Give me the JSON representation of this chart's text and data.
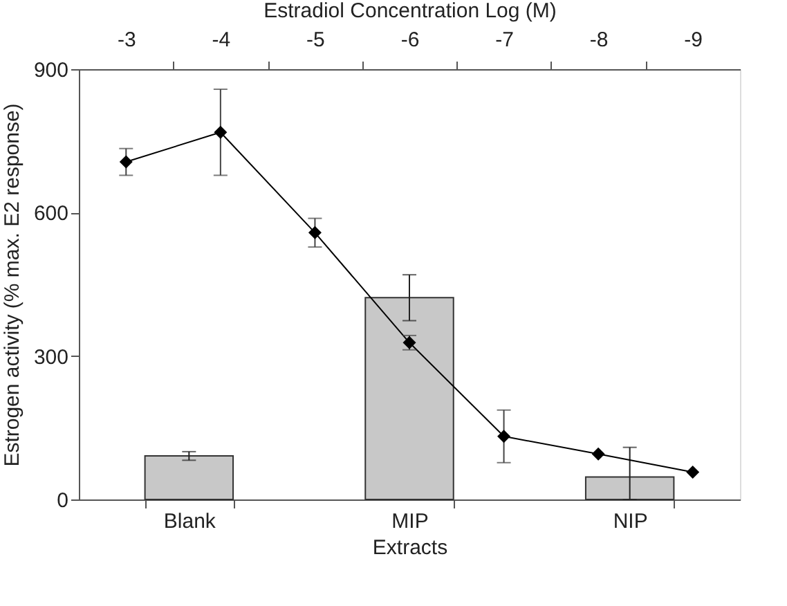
{
  "chart_data": {
    "type": "bar",
    "categories": [
      "Blank",
      "MIP",
      "NIP"
    ],
    "values": [
      91,
      422,
      47
    ],
    "errors": [
      9,
      48,
      [
        0,
        109
      ]
    ],
    "color": "#c8c8c8",
    "xlabel": "Extracts",
    "ylabel": "Estrogen activity (% max. E2 response)",
    "ylim": [
      0,
      900
    ],
    "yticks": [
      0,
      300,
      600,
      900
    ],
    "x2label": "Estradiol Concentration Log (M)",
    "x2lim": [
      -2.5,
      -9.5
    ],
    "x2ticks": [
      -3,
      {
        "value": -3.5,
        "label": null
      },
      -4,
      {
        "value": -4.5,
        "label": null
      },
      -5,
      {
        "value": -5.5,
        "label": null
      },
      -6,
      {
        "value": -6.5,
        "label": null
      },
      -7,
      {
        "value": -7.5,
        "label": null
      },
      -8,
      {
        "value": -8.5,
        "label": null
      },
      -9
    ],
    "series": [
      {
        "type": "line",
        "axis": "x2",
        "x": [
          -3,
          -4,
          -5,
          -6,
          -7,
          -8,
          -9
        ],
        "values": [
          706,
          768,
          558,
          328,
          132,
          95,
          57
        ],
        "errors": [
          28,
          90,
          30,
          15,
          55,
          null,
          null
        ],
        "color": "#000000",
        "marker": "diamond"
      }
    ]
  }
}
